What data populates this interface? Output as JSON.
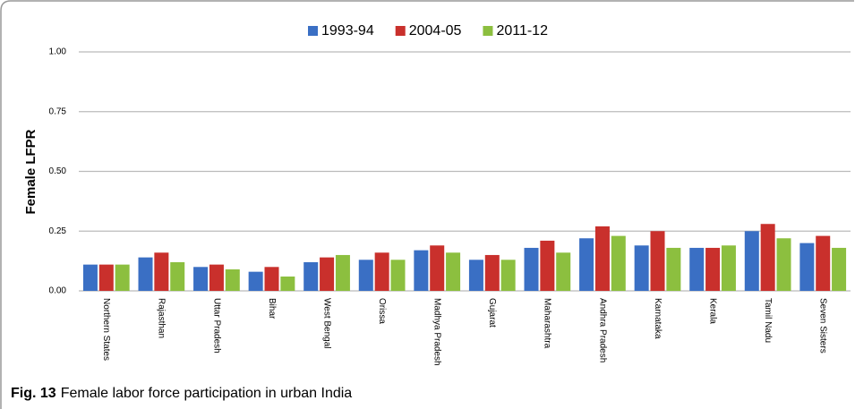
{
  "chart_data": {
    "type": "bar",
    "y_label": "Female LFPR",
    "caption_label": "Fig. 13",
    "caption": "Female labor force participation in urban India",
    "categories": [
      "Northern States",
      "Rajasthan",
      "Uttar Pradesh",
      "Bihar",
      "West Bengal",
      "Orissa",
      "Madhya Pradesh",
      "Gujarat",
      "Maharashtra",
      "Andhra Pradesh",
      "Karnataka",
      "Kerala",
      "Tamil Nadu",
      "Seven Sisters"
    ],
    "series": [
      {
        "name": "1993-94",
        "color": "#3a6fc4",
        "values": [
          0.11,
          0.14,
          0.1,
          0.08,
          0.12,
          0.13,
          0.17,
          0.13,
          0.18,
          0.22,
          0.19,
          0.18,
          0.25,
          0.2
        ]
      },
      {
        "name": "2004-05",
        "color": "#c9302c",
        "values": [
          0.11,
          0.16,
          0.11,
          0.1,
          0.14,
          0.16,
          0.19,
          0.15,
          0.21,
          0.27,
          0.25,
          0.18,
          0.28,
          0.23
        ]
      },
      {
        "name": "2011-12",
        "color": "#8cbf3f",
        "values": [
          0.11,
          0.12,
          0.09,
          0.06,
          0.15,
          0.13,
          0.16,
          0.13,
          0.16,
          0.23,
          0.18,
          0.19,
          0.22,
          0.18
        ]
      }
    ],
    "ylim": [
      0,
      1
    ],
    "yticks": [
      {
        "value": 0,
        "label": "0.00"
      },
      {
        "value": 0.25,
        "label": "0.25"
      },
      {
        "value": 0.5,
        "label": "0.50"
      },
      {
        "value": 0.75,
        "label": "0.75"
      },
      {
        "value": 1,
        "label": "1.00"
      }
    ],
    "grid": true
  }
}
